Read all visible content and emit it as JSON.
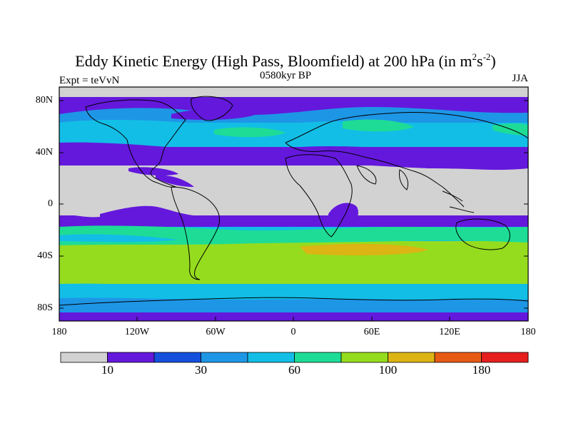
{
  "map": {
    "title_main": "Eddy Kinetic Energy (High Pass, Bloomfield) at 200 hPa (in m",
    "title_sup1": "2",
    "title_mid": "s",
    "title_sup2": "-2",
    "title_end": ")",
    "subtitle": "0580kyr BP",
    "left_label": "Expt = teVvN",
    "right_label": "JJA",
    "projection": "cylindrical equidistant",
    "lon_range": [
      -180,
      180
    ],
    "lat_range": [
      -90,
      90
    ],
    "lat_ticks": [
      "80N",
      "40N",
      "0",
      "40S",
      "80S"
    ],
    "lon_ticks": [
      "180",
      "120W",
      "60W",
      "0",
      "60E",
      "120E",
      "180"
    ]
  },
  "colorbar": {
    "colors": [
      "#d2d2d2",
      "#6418dc",
      "#1450dc",
      "#1e96e6",
      "#12bee6",
      "#1edc96",
      "#96dc1e",
      "#dcb414",
      "#e65a14",
      "#e61e1e"
    ],
    "labels": [
      {
        "text": "10",
        "boundary": 1
      },
      {
        "text": "30",
        "boundary": 3
      },
      {
        "text": "60",
        "boundary": 5
      },
      {
        "text": "100",
        "boundary": 7
      },
      {
        "text": "180",
        "boundary": 9
      }
    ]
  }
}
